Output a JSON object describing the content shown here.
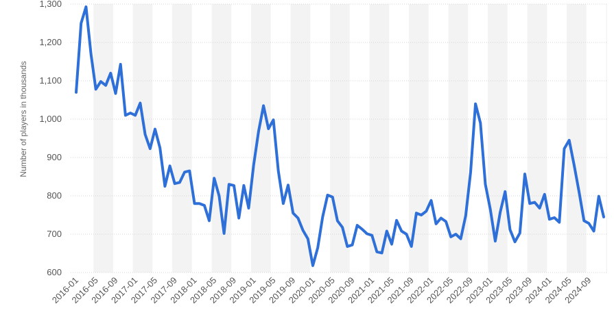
{
  "chart_data": {
    "type": "line",
    "ylabel": "Number of players in thousands",
    "xlabel": "",
    "ylim": [
      600,
      1300
    ],
    "yticks": [
      "600",
      "700",
      "800",
      "900",
      "1,000",
      "1,100",
      "1,200",
      "1,300"
    ],
    "ytick_values": [
      600,
      700,
      800,
      900,
      1000,
      1100,
      1200,
      1300
    ],
    "xticks": [
      "2016-01",
      "2016-05",
      "2016-09",
      "2017-01",
      "2017-05",
      "2017-09",
      "2018-01",
      "2018-05",
      "2018-09",
      "2019-01",
      "2019-05",
      "2019-09",
      "2020-01",
      "2020-05",
      "2020-09",
      "2021-01",
      "2021-05",
      "2021-09",
      "2022-01",
      "2022-05",
      "2022-09",
      "2023-01",
      "2023-05",
      "2023-09",
      "2024-01",
      "2024-05",
      "2024-09"
    ],
    "grid": true,
    "legend": "none",
    "colors": {
      "line": "#2e6fd8",
      "band": "#f3f3f3",
      "grid": "#d6d6d6"
    },
    "series": [
      {
        "start": "2016-01",
        "values": [
          1070,
          1250,
          1293,
          1170,
          1078,
          1098,
          1088,
          1120,
          1067,
          1143,
          1010,
          1016,
          1010,
          1042,
          960,
          923,
          974,
          925,
          825,
          878,
          832,
          835,
          862,
          865,
          780,
          780,
          775,
          735,
          846,
          800,
          702,
          830,
          827,
          742,
          827,
          768,
          880,
          968,
          1035,
          975,
          998,
          865,
          780,
          828,
          755,
          742,
          710,
          688,
          618,
          665,
          745,
          802,
          797,
          735,
          718,
          668,
          672,
          723,
          713,
          701,
          697,
          654,
          651,
          708,
          674,
          736,
          708,
          700,
          668,
          755,
          750,
          760,
          788,
          727,
          742,
          733,
          693,
          700,
          688,
          748,
          862,
          1040,
          990,
          830,
          765,
          682,
          757,
          811,
          712,
          680,
          703,
          857,
          780,
          783,
          768,
          804,
          739,
          743,
          731,
          923,
          945,
          880,
          810,
          735,
          728,
          708,
          799,
          745
        ]
      }
    ]
  }
}
